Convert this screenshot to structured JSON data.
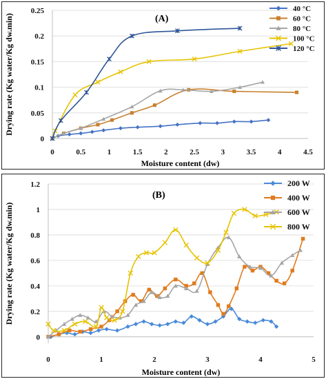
{
  "chart_data": [
    {
      "type": "line",
      "title": "(A)",
      "xlabel": "Moisture content (dw)",
      "ylabel": "Drying rate (Kg water/Kg dw.min)",
      "xlim": [
        0,
        4.5
      ],
      "ylim": [
        0,
        0.25
      ],
      "x_ticks": [
        "0",
        "0.5",
        "1",
        "1.5",
        "2",
        "2.5",
        "3",
        "3.5",
        "4",
        "4.5"
      ],
      "y_ticks": [
        "0",
        "0.05",
        "0.1",
        "0.15",
        "0.2",
        "0.25"
      ],
      "legend_position": "top-right",
      "series": [
        {
          "name": "40 °C",
          "color": "#4472c4",
          "marker": "diamond",
          "x": [
            0,
            0.1,
            0.3,
            0.5,
            0.7,
            0.9,
            1.2,
            1.5,
            1.9,
            2.2,
            2.6,
            2.9,
            3.2,
            3.5,
            3.8
          ],
          "y": [
            0,
            0.005,
            0.008,
            0.01,
            0.013,
            0.016,
            0.02,
            0.022,
            0.024,
            0.027,
            0.03,
            0.03,
            0.033,
            0.033,
            0.036
          ]
        },
        {
          "name": "60 °C",
          "color": "#c8802e",
          "marker": "square",
          "x": [
            0,
            0.2,
            0.5,
            0.8,
            1.05,
            1.4,
            1.8,
            2.4,
            3.2,
            4.3
          ],
          "y": [
            0,
            0.01,
            0.02,
            0.027,
            0.036,
            0.05,
            0.065,
            0.095,
            0.092,
            0.09
          ]
        },
        {
          "name": "80 °C",
          "color": "#a5a5a5",
          "marker": "triangle",
          "x": [
            0,
            0.2,
            0.5,
            0.9,
            1.4,
            1.9,
            2.3,
            2.8,
            3.3,
            3.7
          ],
          "y": [
            0,
            0.01,
            0.02,
            0.038,
            0.062,
            0.093,
            0.095,
            0.092,
            0.1,
            0.11
          ]
        },
        {
          "name": "100 °C",
          "color": "#e6c200",
          "marker": "x",
          "x": [
            0,
            0.05,
            0.4,
            0.8,
            1.2,
            1.7,
            2.5,
            3.3,
            4.2
          ],
          "y": [
            0,
            0.015,
            0.085,
            0.11,
            0.13,
            0.15,
            0.155,
            0.17,
            0.185
          ]
        },
        {
          "name": "120 °C",
          "color": "#2f5597",
          "marker": "star",
          "x": [
            0,
            0.15,
            0.6,
            1.0,
            1.4,
            2.2,
            3.3
          ],
          "y": [
            0,
            0.035,
            0.09,
            0.155,
            0.2,
            0.21,
            0.215
          ]
        }
      ]
    },
    {
      "type": "line",
      "title": "(B)",
      "xlabel": "Moisture content (dw)",
      "ylabel": "Drying rate (Kg water/Kg dw.min)",
      "xlim": [
        0,
        5
      ],
      "ylim": [
        -0.05,
        1.2
      ],
      "x_ticks": [
        "0",
        "1",
        "2",
        "3",
        "4",
        "5"
      ],
      "y_ticks": [
        "0",
        "0.2",
        "0.4",
        "0.6",
        "0.8",
        "1",
        "1.2"
      ],
      "legend_position": "top-right",
      "series": [
        {
          "name": "200 W",
          "color": "#4a8ad8",
          "marker": "diamond",
          "x": [
            0.05,
            0.2,
            0.35,
            0.5,
            0.65,
            0.8,
            0.95,
            1.1,
            1.3,
            1.5,
            1.65,
            1.8,
            1.95,
            2.1,
            2.25,
            2.4,
            2.55,
            2.7,
            2.85,
            3.0,
            3.15,
            3.3,
            3.45,
            3.6,
            3.75,
            3.9,
            4.05,
            4.2,
            4.3
          ],
          "y": [
            0.0,
            0.02,
            0.03,
            0.02,
            0.04,
            0.03,
            0.05,
            0.06,
            0.05,
            0.08,
            0.1,
            0.12,
            0.1,
            0.09,
            0.1,
            0.12,
            0.11,
            0.16,
            0.13,
            0.1,
            0.12,
            0.16,
            0.22,
            0.14,
            0.12,
            0.11,
            0.13,
            0.12,
            0.08
          ]
        },
        {
          "name": "400 W",
          "color": "#e07b1e",
          "marker": "square",
          "x": [
            0.0,
            0.2,
            0.4,
            0.6,
            0.8,
            1.0,
            1.15,
            1.3,
            1.45,
            1.6,
            1.75,
            1.9,
            2.05,
            2.2,
            2.4,
            2.6,
            2.75,
            2.9,
            3.05,
            3.2,
            3.3,
            3.4,
            3.55,
            3.7,
            3.85,
            4.0,
            4.15,
            4.3,
            4.45,
            4.6,
            4.8
          ],
          "y": [
            0.0,
            0.02,
            0.05,
            0.04,
            0.06,
            0.08,
            0.13,
            0.2,
            0.28,
            0.33,
            0.28,
            0.37,
            0.32,
            0.38,
            0.45,
            0.4,
            0.42,
            0.5,
            0.35,
            0.25,
            0.18,
            0.24,
            0.38,
            0.55,
            0.52,
            0.55,
            0.5,
            0.44,
            0.42,
            0.52,
            0.77
          ]
        },
        {
          "name": "600 W",
          "color": "#a5a5a5",
          "marker": "triangle",
          "x": [
            0.0,
            0.15,
            0.3,
            0.45,
            0.6,
            0.75,
            0.9,
            1.05,
            1.2,
            1.35,
            1.5,
            1.65,
            1.8,
            1.95,
            2.1,
            2.25,
            2.4,
            2.6,
            2.8,
            3.0,
            3.2,
            3.4,
            3.6,
            3.8,
            4.0,
            4.2,
            4.4,
            4.6,
            4.75
          ],
          "y": [
            0.0,
            0.05,
            0.1,
            0.14,
            0.17,
            0.15,
            0.12,
            0.2,
            0.16,
            0.15,
            0.17,
            0.25,
            0.28,
            0.35,
            0.31,
            0.32,
            0.4,
            0.38,
            0.36,
            0.57,
            0.7,
            0.78,
            0.63,
            0.55,
            0.54,
            0.48,
            0.58,
            0.64,
            0.68
          ]
        },
        {
          "name": "800 W",
          "color": "#e6c200",
          "marker": "x",
          "x": [
            0.0,
            0.1,
            0.3,
            0.5,
            0.7,
            0.9,
            1.0,
            1.1,
            1.25,
            1.4,
            1.55,
            1.7,
            1.85,
            2.0,
            2.2,
            2.4,
            2.6,
            2.8,
            3.0,
            3.2,
            3.35,
            3.5,
            3.7,
            3.9,
            4.1,
            4.3
          ],
          "y": [
            0.1,
            0.05,
            0.05,
            0.1,
            0.12,
            0.08,
            0.23,
            0.15,
            0.13,
            0.2,
            0.5,
            0.63,
            0.66,
            0.66,
            0.74,
            0.84,
            0.72,
            0.62,
            0.58,
            0.68,
            0.82,
            0.97,
            1.0,
            0.95,
            0.96,
            0.98
          ]
        }
      ]
    }
  ]
}
